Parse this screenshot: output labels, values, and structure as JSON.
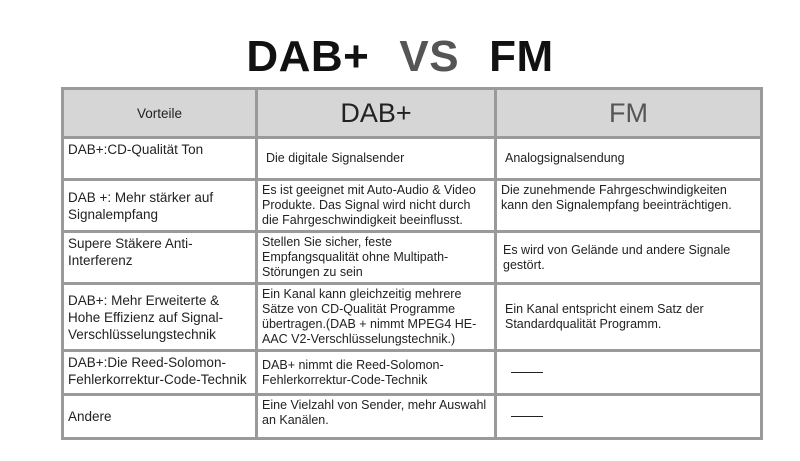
{
  "title": {
    "left": "DAB+",
    "vs": "VS",
    "right": "FM"
  },
  "table": {
    "headers": [
      "Vorteile",
      "DAB+",
      "FM"
    ],
    "rows": [
      {
        "feature": "DAB+:CD-Qualität Ton",
        "dab": "Die digitale Signalsender",
        "fm": "Analogsignalsendung"
      },
      {
        "feature": "DAB +: Mehr stärker auf Signalempfang",
        "dab": "Es ist geeignet mit Auto-Audio & Video Produkte. Das Signal wird nicht durch die Fahrgeschwindigkeit beeinflusst.",
        "fm": "Die zunehmende Fahrgeschwindigkeiten kann den Signalempfang beeinträchtigen."
      },
      {
        "feature": "Supere Stäkere Anti-Interferenz",
        "dab": "Stellen Sie sicher, feste Empfangsqualität ohne Multipath-Störungen zu sein",
        "fm": "Es wird von Gelände und andere Signale gestört."
      },
      {
        "feature": "DAB+: Mehr Erweiterte & Hohe Effizienz auf Signal-Verschlüsselungstechnik",
        "dab": "Ein Kanal kann gleichzeitig mehrere Sätze von CD-Qualität Programme übertragen.(DAB + nimmt MPEG4 HE-AAC V2-Verschlüsselungstechnik.)",
        "fm": "Ein Kanal entspricht einem Satz der Standardqualität Programm."
      },
      {
        "feature": "DAB+:Die Reed-Solomon-Fehlerkorrektur-Code-Technik",
        "dab": "DAB+ nimmt die Reed-Solomon-Fehlerkorrektur-Code-Technik",
        "fm": "—"
      },
      {
        "feature": "Andere",
        "dab": "Eine Vielzahl von Sender, mehr Auswahl an Kanälen.",
        "fm": "—"
      }
    ]
  }
}
